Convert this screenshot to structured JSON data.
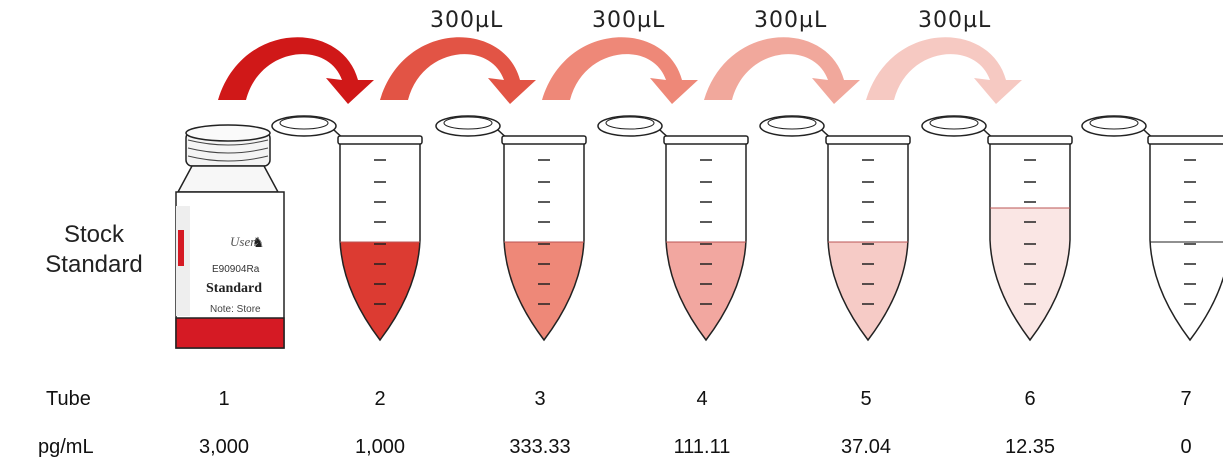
{
  "transfer_labels": [
    "300µL",
    "300µL",
    "300µL",
    "300µL"
  ],
  "stock_label": [
    "Stock",
    "Standard"
  ],
  "bottle_label": {
    "brand": "Usen",
    "code": "E90904Ra",
    "name": "Standard",
    "note": "Note: Store"
  },
  "table": {
    "row_labels": [
      "Tube",
      "pg/mL"
    ],
    "tubes": [
      "1",
      "2",
      "3",
      "4",
      "5",
      "6",
      "7"
    ],
    "concentrations": [
      "3,000",
      "1,000",
      "333.33",
      "111.11",
      "37.04",
      "12.35",
      "0"
    ]
  },
  "colors": {
    "arrow_shades": [
      "#d01818",
      "#e25445",
      "#ee8878",
      "#f1a89c",
      "#f6c9c2"
    ],
    "liquid_shades": [
      "#dc3b32",
      "#ee8878",
      "#f2a7a0",
      "#f6cbc6",
      "#fae6e4",
      "#ffffff"
    ],
    "bottle_red": "#d51a24"
  }
}
